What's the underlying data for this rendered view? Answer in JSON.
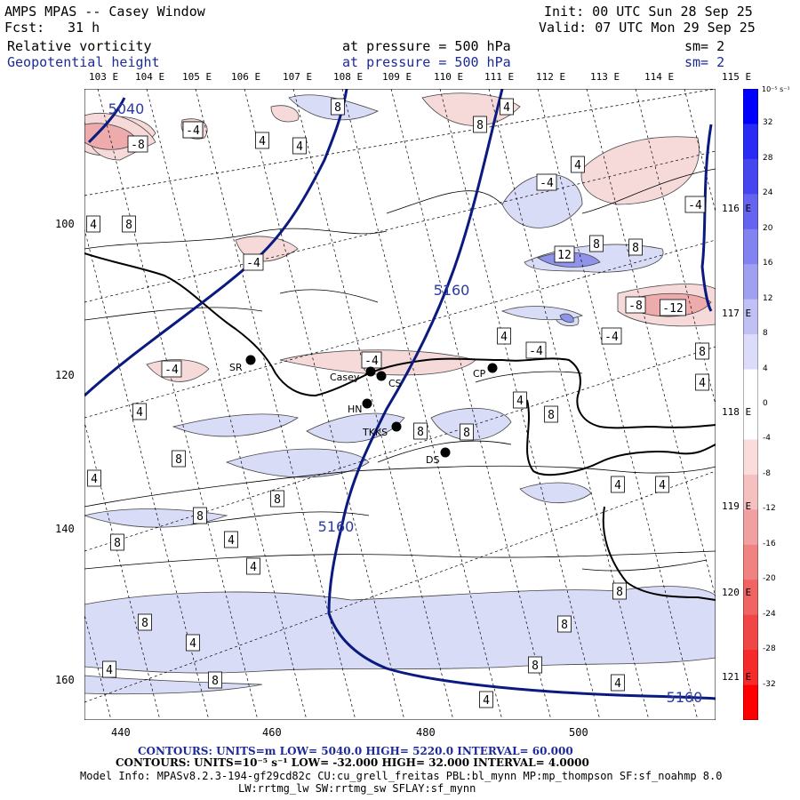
{
  "header": {
    "title": "AMPS MPAS -- Casey Window",
    "init": "Init: 00 UTC Sun 28 Sep 25",
    "fcst_label": "Fcst:",
    "fcst_value": "31 h",
    "valid": "Valid: 07 UTC Mon 29 Sep 25",
    "field1": {
      "name": "Relative vorticity",
      "pressure": "at pressure =  500 hPa",
      "sm": "sm= 2"
    },
    "field2": {
      "name": "Geopotential height",
      "pressure": "at pressure =  500 hPa",
      "sm": "sm= 2"
    }
  },
  "top_lon_labels": [
    "103 E",
    "104 E",
    "105 E",
    "106 E",
    "107 E",
    "108 E",
    "109 E",
    "110 E",
    "111 E",
    "112 E",
    "113 E",
    "114 E",
    "115 E"
  ],
  "right_lon_labels": [
    "116 E",
    "117 E",
    "118 E",
    "119 E",
    "120 E",
    "121 E"
  ],
  "x_ticks": [
    "440",
    "460",
    "480",
    "500"
  ],
  "y_ticks": [
    "100",
    "120",
    "140",
    "160"
  ],
  "stations": [
    {
      "name": "SR"
    },
    {
      "name": "Casey"
    },
    {
      "name": "CS"
    },
    {
      "name": "HN"
    },
    {
      "name": "TKKS"
    },
    {
      "name": "DS"
    },
    {
      "name": "CP"
    }
  ],
  "height_contour_labels": [
    "5040",
    "5160",
    "5160",
    "5160"
  ],
  "vort_labels": [
    "-4",
    "-8",
    "-4",
    "4",
    "4",
    "8",
    "-4",
    "8",
    "4",
    "-4",
    "4",
    "12",
    "8",
    "8",
    "-4",
    "-8",
    "-12",
    "-4",
    "4",
    "-4",
    "8",
    "4",
    "-4",
    "4",
    "4",
    "8",
    "8",
    "8",
    "8",
    "8",
    "4",
    "8",
    "4",
    "8",
    "4",
    "4",
    "4",
    "-4",
    "8",
    "4",
    "8",
    "4",
    "8",
    "8",
    "8",
    "4",
    "8",
    "4",
    "4"
  ],
  "colorbar": {
    "unit_label": "10⁻⁵ s⁻¹",
    "ticks": [
      "32",
      "28",
      "24",
      "20",
      "16",
      "12",
      "8",
      "4",
      "0",
      "-4",
      "-8",
      "-12",
      "-16",
      "-20",
      "-24",
      "-28",
      "-32"
    ],
    "colors": [
      "#0000ff",
      "#2a2af5",
      "#4646f0",
      "#6464f0",
      "#8282f0",
      "#a0a0f0",
      "#c0c0f5",
      "#dcdcfa",
      "#ffffff",
      "#ffffff",
      "#fadcdc",
      "#f5c0c0",
      "#f0a0a0",
      "#f08282",
      "#f06464",
      "#f04646",
      "#f52a2a",
      "#ff0000"
    ]
  },
  "footer": {
    "line1": "CONTOURS:  UNITS=m  LOW=  5040.0           HIGH=  5220.0        INTERVAL=   60.000",
    "line2": "CONTOURS:  UNITS=10⁻⁵ s⁻¹  LOW=  -32.000       HIGH=  32.000       INTERVAL=   4.0000",
    "line3": "Model Info: MPASv8.2.3-194-gf29cd82c CU:cu_grell_freitas PBL:bl_mynn MP:mp_thompson SF:sf_noahmp 8.0",
    "line4": "LW:rrtmg_lw SW:rrtmg_sw SFLAY:sf_mynn"
  }
}
